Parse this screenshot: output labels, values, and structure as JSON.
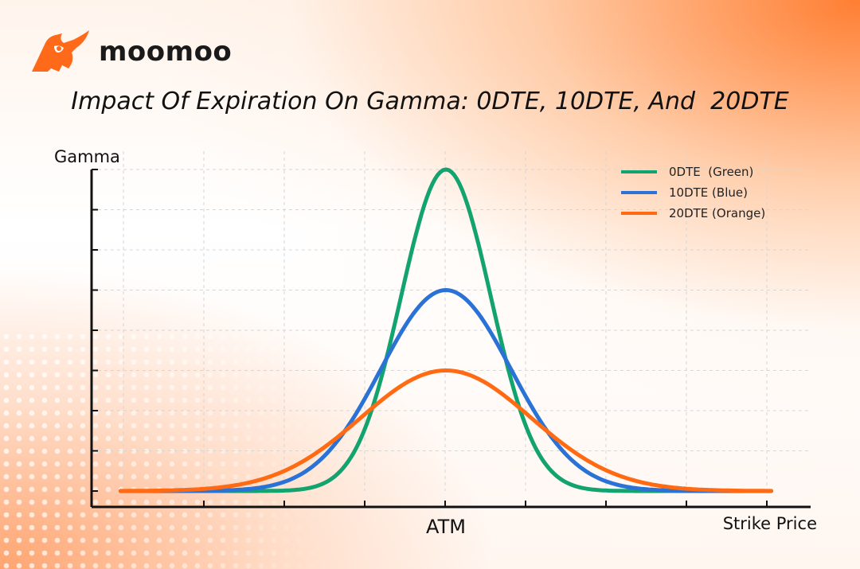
{
  "brand": {
    "name": "moomoo",
    "logo_icon": "bull-icon",
    "accent": "#ff6a1a"
  },
  "chart_data": {
    "type": "line",
    "title": "Impact Of Expiration On Gamma: 0DTE, 10DTE, And  20DTE",
    "xlabel": "Strike Price",
    "ylabel": "Gamma",
    "x_tick_label": "ATM",
    "xlim": [
      -4,
      4
    ],
    "ylim": [
      0,
      8
    ],
    "grid": true,
    "legend_position": "top-right",
    "series": [
      {
        "name": "0DTE  (Green)",
        "color": "#12a36e",
        "peak": 8,
        "sigma": 0.55
      },
      {
        "name": "10DTE (Blue)",
        "color": "#2a72d6",
        "peak": 5,
        "sigma": 0.8
      },
      {
        "name": "20DTE (Orange)",
        "color": "#ff6a12",
        "peak": 3,
        "sigma": 1.05
      }
    ]
  }
}
